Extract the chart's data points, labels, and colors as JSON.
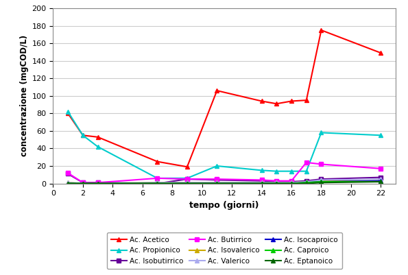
{
  "xlabel": "tempo (giorni)",
  "ylabel": "concentrazione (mgCOD/L)",
  "xlim": [
    0,
    23
  ],
  "ylim": [
    0,
    200
  ],
  "xticks": [
    0,
    2,
    4,
    6,
    8,
    10,
    12,
    14,
    16,
    18,
    20,
    22
  ],
  "yticks": [
    0,
    20,
    40,
    60,
    80,
    100,
    120,
    140,
    160,
    180,
    200
  ],
  "series": [
    {
      "label": "Ac. Acetico",
      "color": "#FF0000",
      "marker": "^",
      "x": [
        1,
        2,
        3,
        7,
        9,
        11,
        14,
        15,
        16,
        17,
        18,
        22
      ],
      "y": [
        80,
        55,
        53,
        25,
        19,
        106,
        94,
        91,
        94,
        95,
        175,
        149
      ]
    },
    {
      "label": "Ac. Propionico",
      "color": "#00CCCC",
      "marker": "^",
      "x": [
        1,
        2,
        3,
        7,
        9,
        11,
        14,
        15,
        16,
        17,
        18,
        22
      ],
      "y": [
        82,
        55,
        42,
        6,
        6,
        20,
        15,
        14,
        14,
        14,
        58,
        55
      ]
    },
    {
      "label": "Ac. Isobutirrico",
      "color": "#660099",
      "marker": "s",
      "x": [
        1,
        2,
        3,
        7,
        9,
        11,
        14,
        15,
        16,
        17,
        18,
        22
      ],
      "y": [
        11,
        1,
        1,
        0,
        5,
        4,
        3,
        2,
        2,
        3,
        5,
        7
      ]
    },
    {
      "label": "Ac. Butirrico",
      "color": "#FF00FF",
      "marker": "s",
      "x": [
        1,
        2,
        3,
        7,
        9,
        11,
        14,
        15,
        16,
        17,
        18,
        22
      ],
      "y": [
        12,
        1,
        1,
        6,
        5,
        5,
        4,
        3,
        3,
        24,
        22,
        17
      ]
    },
    {
      "label": "Ac. Isovalerico",
      "color": "#CCAA00",
      "marker": "^",
      "x": [
        1,
        2,
        3,
        7,
        9,
        11,
        14,
        15,
        16,
        17,
        18,
        22
      ],
      "y": [
        1,
        0,
        0,
        1,
        1,
        1,
        1,
        1,
        1,
        2,
        3,
        3
      ]
    },
    {
      "label": "Ac. Valerico",
      "color": "#AAAAEE",
      "marker": "^",
      "x": [
        1,
        2,
        3,
        7,
        9,
        11,
        14,
        15,
        16,
        17,
        18,
        22
      ],
      "y": [
        1,
        0,
        0,
        1,
        1,
        1,
        1,
        1,
        1,
        2,
        4,
        5
      ]
    },
    {
      "label": "Ac. Isocaproico",
      "color": "#0000CC",
      "marker": "^",
      "x": [
        1,
        2,
        3,
        7,
        9,
        11,
        14,
        15,
        16,
        17,
        18,
        22
      ],
      "y": [
        0,
        0,
        0,
        0,
        0,
        0,
        0,
        0,
        0,
        1,
        2,
        3
      ]
    },
    {
      "label": "Ac. Caproico",
      "color": "#00CC00",
      "marker": "^",
      "x": [
        1,
        2,
        3,
        7,
        9,
        11,
        14,
        15,
        16,
        17,
        18,
        22
      ],
      "y": [
        0,
        0,
        0,
        0,
        0,
        0,
        0,
        0,
        0,
        1,
        2,
        2
      ]
    },
    {
      "label": "Ac. Eptanoico",
      "color": "#006600",
      "marker": "^",
      "x": [
        1,
        2,
        3,
        7,
        9,
        11,
        14,
        15,
        16,
        17,
        18,
        22
      ],
      "y": [
        0,
        0,
        0,
        0,
        0,
        0,
        0,
        0,
        0,
        0,
        1,
        2
      ]
    }
  ],
  "legend_ncol": 3,
  "background_color": "#FFFFFF",
  "grid_color": "#CCCCCC",
  "plot_bg": "#FFFFFF"
}
